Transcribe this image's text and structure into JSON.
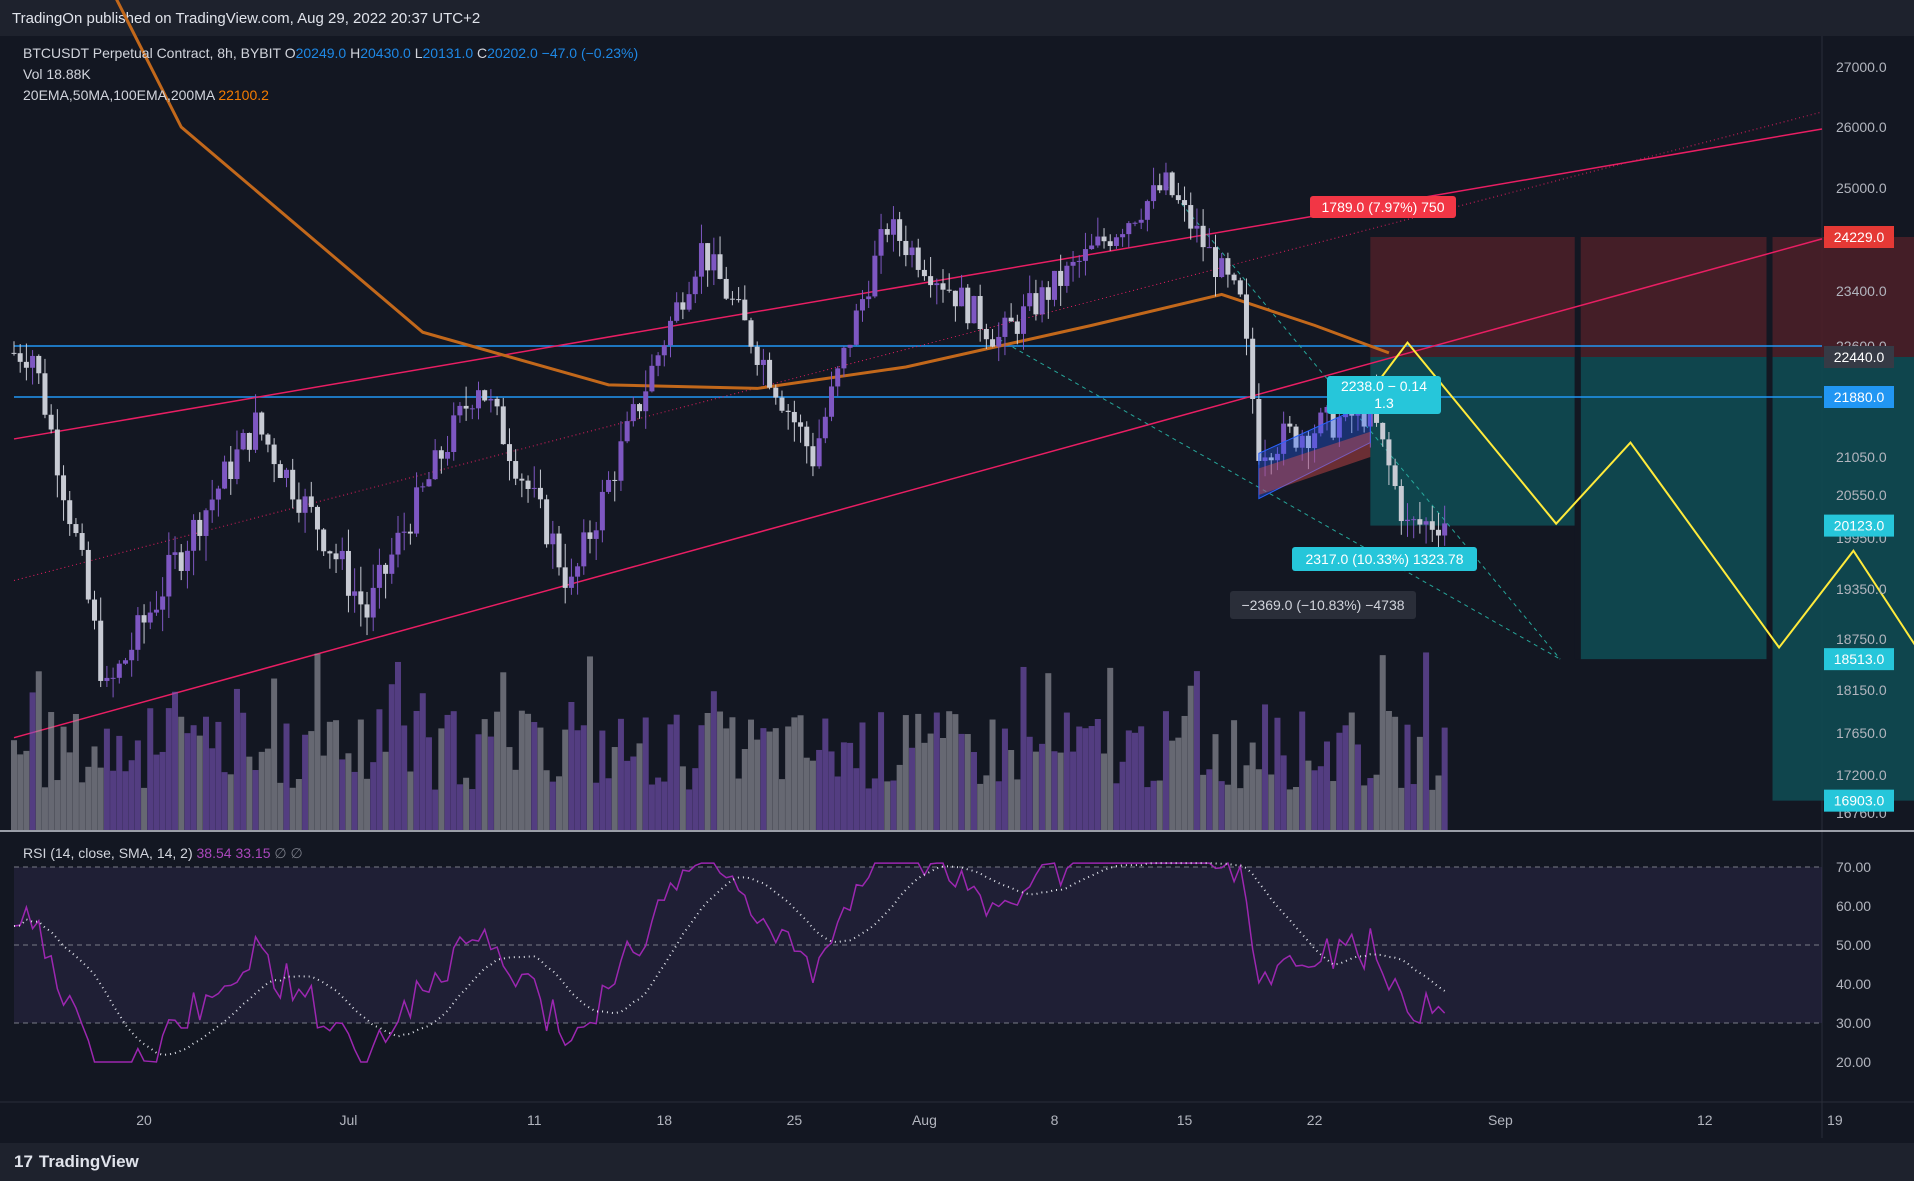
{
  "header": {
    "published": "TradingOn published on TradingView.com, Aug 29, 2022 20:37 UTC+2"
  },
  "legend": {
    "symbol": "BTCUSDT Perpetual Contract, 8h, BYBIT",
    "open_label": "O",
    "open": "20249.0",
    "high_label": "H",
    "high": "20430.0",
    "low_label": "L",
    "low": "20131.0",
    "close_label": "C",
    "close": "20202.0",
    "change": "−47.0 (−0.23%)",
    "vol_label": "Vol",
    "vol": "18.88K",
    "ma_label": "20EMA,50MA,100EMA,200MA",
    "ma_value": "22100.2"
  },
  "rsi_legend": {
    "label": "RSI (14, close, SMA, 14, 2)",
    "rsi": "38.54",
    "sma": "33.15",
    "extra": "∅ ∅"
  },
  "footer": {
    "brand": "TradingView",
    "logo_glyph": "17"
  },
  "colors": {
    "bg": "#131722",
    "up": "#7e57c2",
    "down": "#c8cbd4",
    "ma": "#c2681b",
    "channel": "#e91e63",
    "hline": "#2196f3",
    "projection": "#ffeb3b",
    "rsi": "#9c27b0",
    "rsi_sma": "#e0e3eb",
    "target_zone": "#0f4a52",
    "stop_zone": "#4a1f28"
  },
  "chart_data": {
    "type": "candlestick",
    "symbol": "BTCUSDT Perpetual Contract",
    "interval": "8h",
    "y_ticks": [
      "27000.0",
      "26000.0",
      "25000.0",
      "23400.0",
      "22600.0",
      "21050.0",
      "20550.0",
      "19950.0",
      "19350.0",
      "18750.0",
      "18150.0",
      "17650.0",
      "17200.0",
      "16760.0"
    ],
    "price_labels": [
      {
        "text": "24229.0",
        "value": 24229.0,
        "color": "#e53935"
      },
      {
        "text": "22440.0",
        "value": 22440.0,
        "color": "#363a45"
      },
      {
        "text": "21880.0",
        "value": 21880.0,
        "color": "#2196f3"
      },
      {
        "text": "20123.0",
        "value": 20123.0,
        "color": "#26c6da"
      },
      {
        "text": "18513.0",
        "value": 18513.0,
        "color": "#26c6da"
      },
      {
        "text": "16903.0",
        "value": 16903.0,
        "color": "#26c6da"
      }
    ],
    "x_ticks": [
      "20",
      "Jul",
      "11",
      "18",
      "25",
      "Aug",
      "8",
      "15",
      "22",
      "Sep",
      "12",
      "19"
    ],
    "ohlc_key": [
      {
        "label": "Jun 14",
        "value": 22500
      },
      {
        "label": "Jun 18",
        "value": 18100
      },
      {
        "label": "Jun 26",
        "value": 21500
      },
      {
        "label": "Jul 2",
        "value": 19050
      },
      {
        "label": "Jul 8",
        "value": 22100
      },
      {
        "label": "Jul 13",
        "value": 19350
      },
      {
        "label": "Jul 20",
        "value": 24050
      },
      {
        "label": "Jul 26",
        "value": 21050
      },
      {
        "label": "Jul 30",
        "value": 24400
      },
      {
        "label": "Aug 5",
        "value": 22700
      },
      {
        "label": "Aug 14",
        "value": 25050
      },
      {
        "label": "Aug 18",
        "value": 23200
      },
      {
        "label": "Aug 19",
        "value": 21200
      },
      {
        "label": "Aug 25",
        "value": 21700
      },
      {
        "label": "Aug 27",
        "value": 20100
      },
      {
        "label": "Aug 29",
        "value": 20202
      }
    ],
    "ma_200": [
      {
        "label": "Jun 13",
        "value": 31500
      },
      {
        "label": "Jun 22",
        "value": 26000
      },
      {
        "label": "Jul 5",
        "value": 22800
      },
      {
        "label": "Jul 15",
        "value": 22050
      },
      {
        "label": "Jul 23",
        "value": 22000
      },
      {
        "label": "Jul 31",
        "value": 22300
      },
      {
        "label": "Aug 10",
        "value": 22900
      },
      {
        "label": "Aug 17",
        "value": 23350
      },
      {
        "label": "Aug 22",
        "value": 22900
      },
      {
        "label": "Aug 26",
        "value": 22500
      }
    ],
    "annotations": [
      {
        "text": "1789.0 (7.97%) 750",
        "color": "#f23645"
      },
      {
        "text": "2238.0 − 0.14",
        "sub": "1.3",
        "color": "#26c6da"
      },
      {
        "text": "2317.0 (10.33%) 1323.78",
        "color": "#26c6da"
      },
      {
        "text": "−2369.0 (−10.83%) −4738",
        "color": "#2a2e39"
      }
    ],
    "horizontal_levels": [
      22600,
      21880
    ],
    "projection_path": [
      {
        "label": "Aug 25",
        "value": 21950
      },
      {
        "label": "Aug 27",
        "value": 22650
      },
      {
        "label": "Sep 4",
        "value": 20150
      },
      {
        "label": "Sep 8",
        "value": 21250
      },
      {
        "label": "Sep 16",
        "value": 18650
      },
      {
        "label": "Sep 20",
        "value": 19800
      },
      {
        "label": "Sep 24",
        "value": 18450
      }
    ],
    "rsi": {
      "y_ticks": [
        "70.00",
        "60.00",
        "50.00",
        "40.00",
        "30.00",
        "20.00"
      ],
      "band": [
        30,
        70
      ],
      "current": 38.54,
      "sma_current": 33.15
    }
  }
}
